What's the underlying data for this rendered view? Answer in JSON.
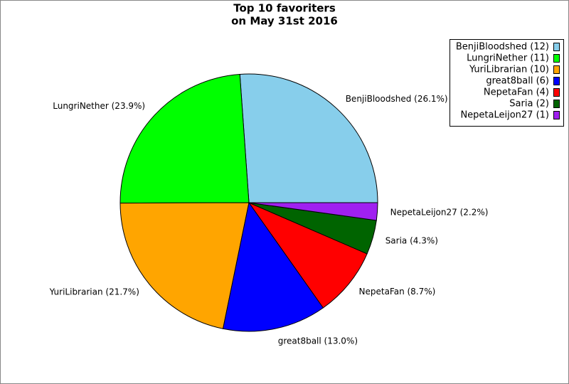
{
  "chart_data": {
    "type": "pie",
    "title": [
      "Top 10 favoriters",
      "on May 31st 2016"
    ],
    "categories": [
      "BenjiBloodshed (12)",
      "LungriNether (11)",
      "YuriLibrarian (10)",
      "great8ball (6)",
      "NepetaFan (4)",
      "Saria (2)",
      "NepetaLeijon27 (1)"
    ],
    "values": [
      26.1,
      23.9,
      21.7,
      13.0,
      8.7,
      4.3,
      2.2
    ],
    "value_labels": [
      "BenjiBloodshed (26.1%)",
      "LungriNether (23.9%)",
      "YuriLibrarian (21.7%)",
      "great8ball (13.0%)",
      "NepetaFan (8.7%)",
      "Saria (4.3%)",
      "NepetaLeijon27 (2.2%)"
    ],
    "colors": [
      "#87ceeb",
      "#00ff00",
      "#ffa500",
      "#0000ff",
      "#ff0000",
      "#006400",
      "#a020f0"
    ],
    "legend": "upper right"
  }
}
